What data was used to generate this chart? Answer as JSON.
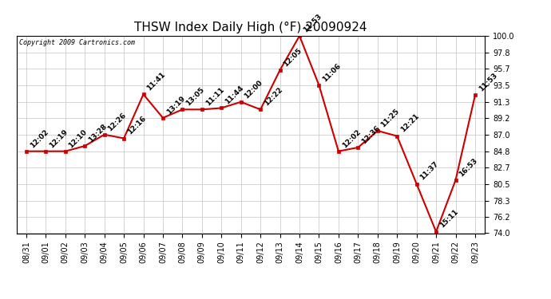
{
  "title": "THSW Index Daily High (°F) 20090924",
  "copyright": "Copyright 2009 Cartronics.com",
  "x_labels": [
    "08/31",
    "09/01",
    "09/02",
    "09/03",
    "09/04",
    "09/05",
    "09/06",
    "09/07",
    "09/08",
    "09/09",
    "09/10",
    "09/11",
    "09/12",
    "09/13",
    "09/14",
    "09/15",
    "09/16",
    "09/17",
    "09/18",
    "09/19",
    "09/20",
    "09/21",
    "09/22",
    "09/23"
  ],
  "y_values": [
    84.8,
    84.8,
    84.8,
    85.5,
    87.0,
    86.5,
    92.3,
    89.2,
    90.3,
    90.3,
    90.5,
    91.3,
    90.3,
    95.5,
    100.0,
    93.5,
    84.8,
    85.3,
    87.5,
    86.8,
    80.5,
    74.2,
    81.0,
    92.2
  ],
  "time_labels": [
    "12:02",
    "12:19",
    "12:10",
    "13:28",
    "12:26",
    "12:16",
    "11:41",
    "13:19",
    "13:05",
    "11:11",
    "11:44",
    "12:00",
    "12:22",
    "12:05",
    "11:53",
    "11:06",
    "12:02",
    "12:36",
    "11:25",
    "12:21",
    "11:37",
    "15:11",
    "16:53",
    "11:53"
  ],
  "ylim_min": 74.0,
  "ylim_max": 100.0,
  "yticks": [
    74.0,
    76.2,
    78.3,
    80.5,
    82.7,
    84.8,
    87.0,
    89.2,
    91.3,
    93.5,
    95.7,
    97.8,
    100.0
  ],
  "line_color": "#cc0000",
  "marker_color": "#cc0000",
  "bg_color": "#ffffff",
  "grid_color": "#cccccc",
  "title_fontsize": 11,
  "tick_fontsize": 7,
  "annot_fontsize": 6.5
}
